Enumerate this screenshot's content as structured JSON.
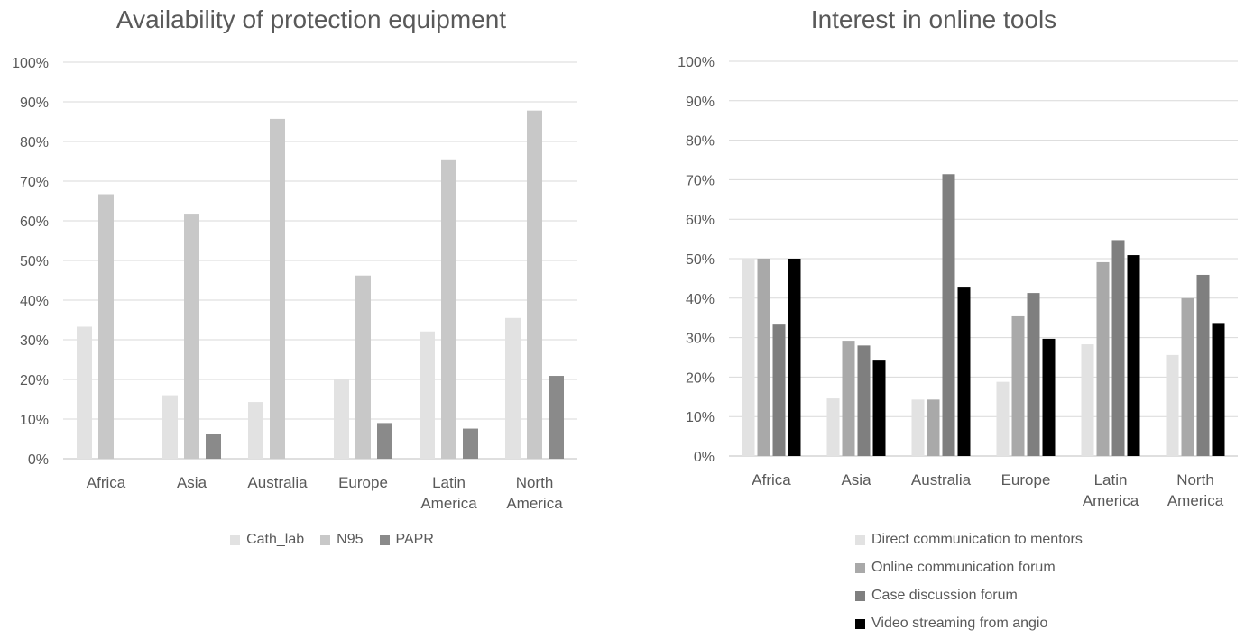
{
  "chart_data": [
    {
      "type": "bar",
      "title": "Availability of protection equipment",
      "categories": [
        "Africa",
        "Asia",
        "Australia",
        "Europe",
        "Latin America",
        "North America"
      ],
      "category_lines": [
        [
          "Africa"
        ],
        [
          "Asia"
        ],
        [
          "Australia"
        ],
        [
          "Europe"
        ],
        [
          "Latin",
          "America"
        ],
        [
          "North",
          "America"
        ]
      ],
      "series": [
        {
          "name": "Cath_lab",
          "color": "#e2e2e2",
          "values": [
            33.3,
            16.0,
            14.3,
            20.0,
            32.1,
            35.5
          ]
        },
        {
          "name": "N95",
          "color": "#c8c8c8",
          "values": [
            66.7,
            61.8,
            85.7,
            46.2,
            75.5,
            87.8
          ]
        },
        {
          "name": "PAPR",
          "color": "#8a8a8a",
          "values": [
            0,
            6.2,
            0,
            9.0,
            7.6,
            20.9
          ]
        }
      ],
      "ylim": [
        0,
        100
      ],
      "yticks": [
        "0%",
        "10%",
        "20%",
        "30%",
        "40%",
        "50%",
        "60%",
        "70%",
        "80%",
        "90%",
        "100%"
      ],
      "grid": true,
      "legend": "bottom"
    },
    {
      "type": "bar",
      "title": "Interest in online tools",
      "categories": [
        "Africa",
        "Asia",
        "Australia",
        "Europe",
        "Latin America",
        "North America"
      ],
      "category_lines": [
        [
          "Africa"
        ],
        [
          "Asia"
        ],
        [
          "Australia"
        ],
        [
          "Europe"
        ],
        [
          "Latin",
          "America"
        ],
        [
          "North",
          "America"
        ]
      ],
      "series": [
        {
          "name": "Direct communication to mentors",
          "color": "#e2e2e2",
          "values": [
            50.0,
            14.6,
            14.3,
            18.8,
            28.3,
            25.6
          ]
        },
        {
          "name": "Online communication forum",
          "color": "#a9a9a9",
          "values": [
            50.0,
            29.2,
            14.3,
            35.4,
            49.1,
            40.0
          ]
        },
        {
          "name": "Case discussion forum",
          "color": "#7f7f7f",
          "values": [
            33.3,
            28.0,
            71.4,
            41.3,
            54.7,
            45.9
          ]
        },
        {
          "name": "Video streaming from angio",
          "color": "#000000",
          "values": [
            50.0,
            24.4,
            42.9,
            29.7,
            50.9,
            33.7
          ]
        }
      ],
      "ylim": [
        0,
        100
      ],
      "yticks": [
        "0%",
        "10%",
        "20%",
        "30%",
        "40%",
        "50%",
        "60%",
        "70%",
        "80%",
        "90%",
        "100%"
      ],
      "grid": true,
      "legend": "bottom"
    }
  ]
}
